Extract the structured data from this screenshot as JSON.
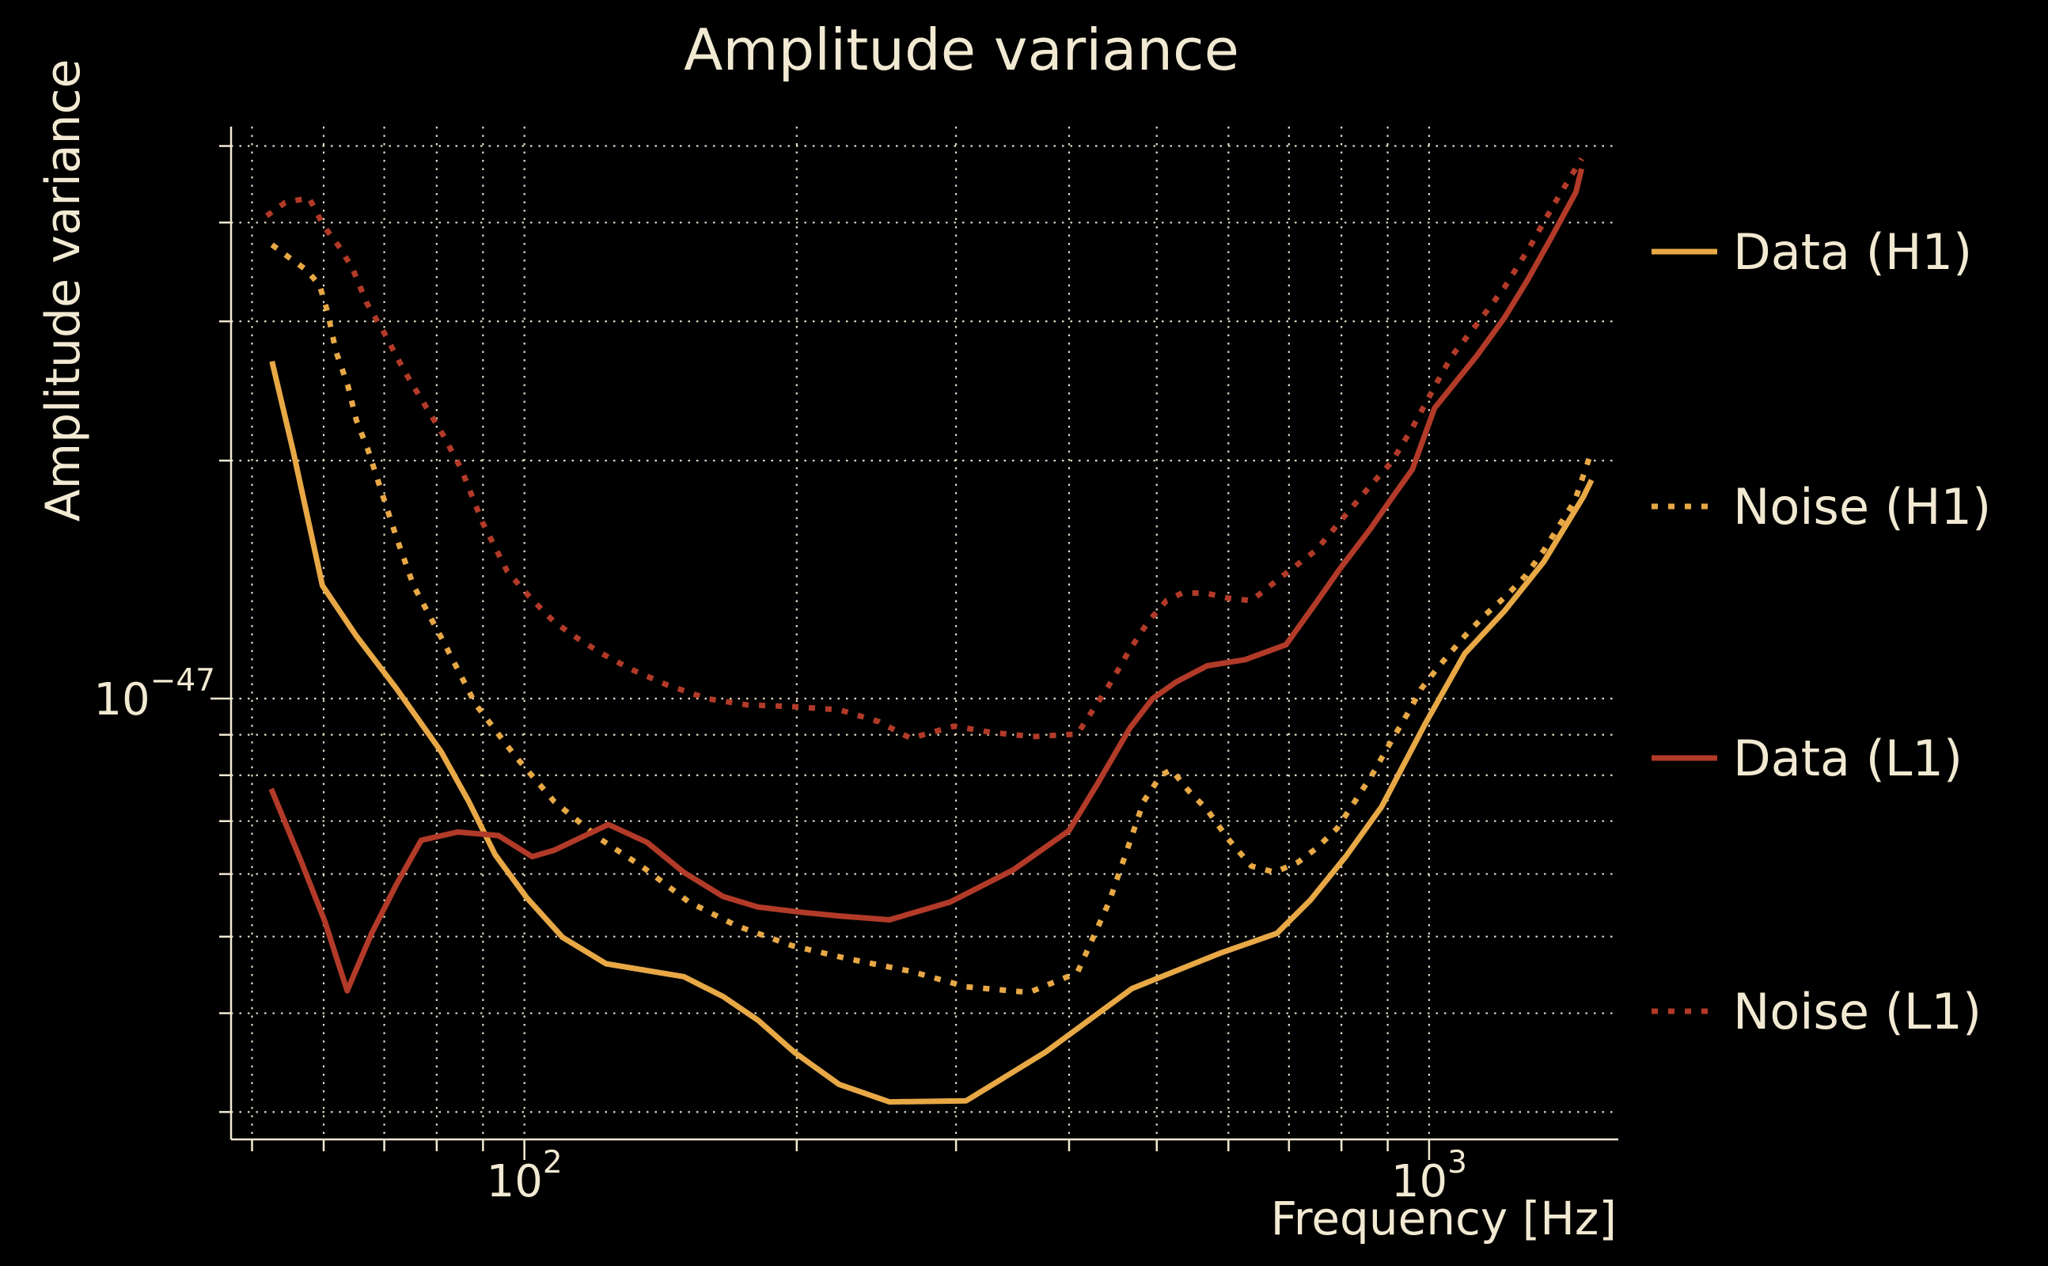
{
  "chart_data": {
    "type": "line",
    "title": "Amplitude variance",
    "xlabel": "Frequency [Hz]",
    "ylabel": "Amplitude variance",
    "xscale": "log",
    "yscale": "log",
    "xlim": [
      47.4,
      1612
    ],
    "ylim": [
      2.77e-48,
      5.29e-47
    ],
    "grid": true,
    "legend_position": "right-outside",
    "colors": {
      "h1": "#e7a845",
      "l1": "#b23a28",
      "text": "#f2e9d2",
      "grid": "#efe6cd",
      "background": "#000000"
    },
    "xticks": {
      "major": [
        100,
        1000
      ],
      "minor": [
        50,
        60,
        70,
        80,
        90,
        200,
        300,
        400,
        500,
        600,
        700,
        800,
        900
      ],
      "labels": [
        {
          "base": "10",
          "exp": "2"
        },
        {
          "base": "10",
          "exp": "3"
        }
      ]
    },
    "yticks": {
      "major": [
        1e-47
      ],
      "minor": [
        3e-48,
        4e-48,
        5e-48,
        6e-48,
        7e-48,
        8e-48,
        9e-48,
        2e-47,
        3e-47,
        4e-47,
        5e-47
      ],
      "labels": [
        {
          "base": "10",
          "exp": "−47"
        }
      ]
    },
    "series": [
      {
        "key": "data_h1",
        "name": "Data (H1)",
        "detector": "h1",
        "line": "solid",
        "points": [
          [
            52.6,
            2.67e-47
          ],
          [
            55.5,
            2.06e-47
          ],
          [
            59.8,
            1.39e-47
          ],
          [
            65.2,
            1.2e-47
          ],
          [
            72.2,
            1.03e-47
          ],
          [
            80.9,
            8.57e-48
          ],
          [
            86.8,
            7.41e-48
          ],
          [
            92.8,
            6.35e-48
          ],
          [
            100.6,
            5.6e-48
          ],
          [
            110.2,
            4.99e-48
          ],
          [
            123.1,
            4.62e-48
          ],
          [
            150,
            4.45e-48
          ],
          [
            165.8,
            4.2e-48
          ],
          [
            181.2,
            3.92e-48
          ],
          [
            198.8,
            3.57e-48
          ],
          [
            222.9,
            3.25e-48
          ],
          [
            253.2,
            3.09e-48
          ],
          [
            307.8,
            3.1e-48
          ],
          [
            376.4,
            3.57e-48
          ],
          [
            469.7,
            4.3e-48
          ],
          [
            586.2,
            4.76e-48
          ],
          [
            679.1,
            5.05e-48
          ],
          [
            739.2,
            5.56e-48
          ],
          [
            809.5,
            6.32e-48
          ],
          [
            886.1,
            7.3e-48
          ],
          [
            989.9,
            9.29e-48
          ],
          [
            1095,
            1.14e-47
          ],
          [
            1211,
            1.29e-47
          ],
          [
            1339,
            1.49e-47
          ],
          [
            1481,
            1.8e-47
          ],
          [
            1512,
            1.89e-47
          ]
        ]
      },
      {
        "key": "noise_h1",
        "name": "Noise (H1)",
        "detector": "h1",
        "line": "dotted",
        "points": [
          [
            52.6,
            3.75e-47
          ],
          [
            55,
            3.61e-47
          ],
          [
            57.5,
            3.48e-47
          ],
          [
            59.4,
            3.33e-47
          ],
          [
            60.6,
            3.08e-47
          ],
          [
            61.9,
            2.75e-47
          ],
          [
            63.8,
            2.49e-47
          ],
          [
            65.2,
            2.25e-47
          ],
          [
            67.2,
            2.06e-47
          ],
          [
            69.7,
            1.81e-47
          ],
          [
            72.2,
            1.6e-47
          ],
          [
            75.4,
            1.39e-47
          ],
          [
            81.4,
            1.18e-47
          ],
          [
            88.3,
            9.84e-48
          ],
          [
            97.6,
            8.47e-48
          ],
          [
            107.9,
            7.41e-48
          ],
          [
            121.1,
            6.65e-48
          ],
          [
            134.7,
            6.14e-48
          ],
          [
            152,
            5.53e-48
          ],
          [
            171.6,
            5.16e-48
          ],
          [
            197.5,
            4.87e-48
          ],
          [
            227.4,
            4.69e-48
          ],
          [
            267.2,
            4.52e-48
          ],
          [
            307.8,
            4.32e-48
          ],
          [
            361.3,
            4.25e-48
          ],
          [
            408.5,
            4.5e-48
          ],
          [
            442.8,
            5.53e-48
          ],
          [
            466.1,
            6.55e-48
          ],
          [
            483.5,
            7.41e-48
          ],
          [
            505.5,
            8e-48
          ],
          [
            519,
            8.13e-48
          ],
          [
            542.4,
            7.64e-48
          ],
          [
            568.2,
            7.24e-48
          ],
          [
            599.3,
            6.65e-48
          ],
          [
            636.2,
            6.14e-48
          ],
          [
            675,
            6.03e-48
          ],
          [
            716.4,
            6.21e-48
          ],
          [
            749.8,
            6.46e-48
          ],
          [
            790.9,
            6.85e-48
          ],
          [
            827.6,
            7.41e-48
          ],
          [
            864.5,
            8e-48
          ],
          [
            904.8,
            8.77e-48
          ],
          [
            945.4,
            9.55e-48
          ],
          [
            980.7,
            1.03e-47
          ],
          [
            1026,
            1.1e-47
          ],
          [
            1095,
            1.2e-47
          ],
          [
            1148,
            1.27e-47
          ],
          [
            1218,
            1.35e-47
          ],
          [
            1278,
            1.43e-47
          ],
          [
            1339,
            1.54e-47
          ],
          [
            1395,
            1.66e-47
          ],
          [
            1449,
            1.78e-47
          ],
          [
            1513,
            2.06e-47
          ]
        ]
      },
      {
        "key": "data_l1",
        "name": "Data (L1)",
        "detector": "l1",
        "line": "solid",
        "points": [
          [
            52.5,
            7.69e-48
          ],
          [
            56.7,
            6.21e-48
          ],
          [
            60.2,
            5.22e-48
          ],
          [
            63.7,
            4.27e-48
          ],
          [
            67.8,
            5.05e-48
          ],
          [
            72.2,
            5.82e-48
          ],
          [
            76.9,
            6.62e-48
          ],
          [
            84.4,
            6.78e-48
          ],
          [
            93.6,
            6.71e-48
          ],
          [
            102,
            6.31e-48
          ],
          [
            107.9,
            6.43e-48
          ],
          [
            123.8,
            6.93e-48
          ],
          [
            136.6,
            6.58e-48
          ],
          [
            150,
            6.03e-48
          ],
          [
            165.8,
            5.62e-48
          ],
          [
            181.2,
            5.45e-48
          ],
          [
            201.6,
            5.37e-48
          ],
          [
            222.9,
            5.31e-48
          ],
          [
            253.2,
            5.25e-48
          ],
          [
            295.5,
            5.53e-48
          ],
          [
            346.8,
            6.07e-48
          ],
          [
            400,
            6.81e-48
          ],
          [
            428.7,
            7.76e-48
          ],
          [
            467,
            9.18e-48
          ],
          [
            494.7,
            1e-47
          ],
          [
            525.6,
            1.05e-47
          ],
          [
            568.2,
            1.1e-47
          ],
          [
            626,
            1.12e-47
          ],
          [
            694.8,
            1.17e-47
          ],
          [
            745.8,
            1.31e-47
          ],
          [
            797,
            1.46e-47
          ],
          [
            861.3,
            1.64e-47
          ],
          [
            908.5,
            1.79e-47
          ],
          [
            958.3,
            1.95e-47
          ],
          [
            1014,
            2.33e-47
          ],
          [
            1128,
            2.71e-47
          ],
          [
            1211,
            3.03e-47
          ],
          [
            1286,
            3.39e-47
          ],
          [
            1365,
            3.83e-47
          ],
          [
            1453,
            4.37e-47
          ],
          [
            1474,
            4.68e-47
          ]
        ]
      },
      {
        "key": "noise_l1",
        "name": "Noise (L1)",
        "detector": "l1",
        "line": "dotted",
        "points": [
          [
            51.9,
            4.08e-47
          ],
          [
            54.4,
            4.24e-47
          ],
          [
            57.8,
            4.3e-47
          ],
          [
            60,
            3.96e-47
          ],
          [
            62.3,
            3.74e-47
          ],
          [
            64.5,
            3.51e-47
          ],
          [
            67,
            3.16e-47
          ],
          [
            70,
            2.9e-47
          ],
          [
            73.6,
            2.6e-47
          ],
          [
            77.3,
            2.37e-47
          ],
          [
            81.4,
            2.15e-47
          ],
          [
            85.2,
            1.95e-47
          ],
          [
            89.9,
            1.67e-47
          ],
          [
            95.7,
            1.45e-47
          ],
          [
            101.6,
            1.34e-47
          ],
          [
            107.9,
            1.25e-47
          ],
          [
            114.7,
            1.19e-47
          ],
          [
            121.8,
            1.14e-47
          ],
          [
            131,
            1.09e-47
          ],
          [
            144,
            1.04e-47
          ],
          [
            159.2,
            1e-47
          ],
          [
            176,
            9.82e-48
          ],
          [
            197.5,
            9.77e-48
          ],
          [
            222.9,
            9.68e-48
          ],
          [
            246.5,
            9.35e-48
          ],
          [
            267.2,
            8.91e-48
          ],
          [
            298.5,
            9.23e-48
          ],
          [
            328.4,
            9.06e-48
          ],
          [
            364.9,
            8.95e-48
          ],
          [
            408.5,
            9.02e-48
          ],
          [
            445.3,
            1.05e-47
          ],
          [
            466.1,
            1.15e-47
          ],
          [
            489,
            1.25e-47
          ],
          [
            512.4,
            1.33e-47
          ],
          [
            533.3,
            1.36e-47
          ],
          [
            566,
            1.36e-47
          ],
          [
            599.3,
            1.34e-47
          ],
          [
            636.2,
            1.33e-47
          ],
          [
            683.6,
            1.42e-47
          ],
          [
            749.8,
            1.54e-47
          ],
          [
            809.5,
            1.71e-47
          ],
          [
            861.3,
            1.86e-47
          ],
          [
            908.5,
            1.99e-47
          ],
          [
            958.3,
            2.2e-47
          ],
          [
            1014,
            2.48e-47
          ],
          [
            1059,
            2.71e-47
          ],
          [
            1133,
            2.99e-47
          ],
          [
            1211,
            3.31e-47
          ],
          [
            1291,
            3.72e-47
          ],
          [
            1371,
            4.2e-47
          ],
          [
            1474,
            4.82e-47
          ]
        ]
      }
    ],
    "legend": {
      "entries": [
        {
          "label": "Data (H1)",
          "series": "data_h1",
          "y": 318
        },
        {
          "label": "Noise (H1)",
          "series": "noise_h1",
          "y": 640
        },
        {
          "label": "Data (L1)",
          "series": "data_l1",
          "y": 958
        },
        {
          "label": "Noise (L1)",
          "series": "noise_l1",
          "y": 1278
        }
      ]
    }
  }
}
